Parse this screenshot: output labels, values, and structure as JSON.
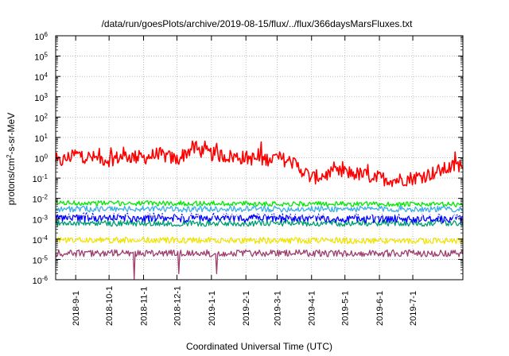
{
  "chart_data": {
    "type": "line",
    "title": "/data/run/goesPlots/archive/2019-08-15/flux/../flux/366daysMarsFluxes.txt",
    "xlabel": "Coordinated Universal Time (UTC)",
    "ylabel": {
      "base": "protons/cm",
      "sup": "2",
      "rest": "-s-sr-MeV"
    },
    "yscale": "log",
    "ylim": [
      1e-06,
      1000000.0
    ],
    "y_ticks": [
      {
        "value": 1e-06,
        "base": "10",
        "exp": "-6"
      },
      {
        "value": 1e-05,
        "base": "10",
        "exp": "-5"
      },
      {
        "value": 0.0001,
        "base": "10",
        "exp": "-4"
      },
      {
        "value": 0.001,
        "base": "10",
        "exp": "-3"
      },
      {
        "value": 0.01,
        "base": "10",
        "exp": "-2"
      },
      {
        "value": 0.1,
        "base": "10",
        "exp": "-1"
      },
      {
        "value": 1.0,
        "base": "10",
        "exp": "0"
      },
      {
        "value": 10.0,
        "base": "10",
        "exp": "1"
      },
      {
        "value": 100.0,
        "base": "10",
        "exp": "2"
      },
      {
        "value": 1000.0,
        "base": "10",
        "exp": "3"
      },
      {
        "value": 10000.0,
        "base": "10",
        "exp": "4"
      },
      {
        "value": 100000.0,
        "base": "10",
        "exp": "5"
      },
      {
        "value": 1000000.0,
        "base": "10",
        "exp": "6"
      }
    ],
    "xlim": [
      "2018-08-14",
      "2019-08-15"
    ],
    "x_ticks": [
      {
        "date": "2018-09-01",
        "label": "2018-9-1"
      },
      {
        "date": "2018-10-01",
        "label": "2018-10-1"
      },
      {
        "date": "2018-11-01",
        "label": "2018-11-1"
      },
      {
        "date": "2018-12-01",
        "label": "2018-12-1"
      },
      {
        "date": "2019-01-01",
        "label": "2019-1-1"
      },
      {
        "date": "2019-02-01",
        "label": "2019-2-1"
      },
      {
        "date": "2019-03-01",
        "label": "2019-3-1"
      },
      {
        "date": "2019-04-01",
        "label": "2019-4-1"
      },
      {
        "date": "2019-05-01",
        "label": "2019-5-1"
      },
      {
        "date": "2019-06-01",
        "label": "2019-6-1"
      },
      {
        "date": "2019-07-01",
        "label": "2019-7-1"
      }
    ],
    "grid": true,
    "grid_style": "dotted",
    "series": [
      {
        "color": "#ff0000",
        "x": [
          "2018-08-14",
          "2018-09-01",
          "2018-09-15",
          "2018-10-01",
          "2018-10-15",
          "2018-11-01",
          "2018-11-15",
          "2018-12-01",
          "2018-12-15",
          "2019-01-01",
          "2019-01-15",
          "2019-02-01",
          "2019-02-15",
          "2019-03-01",
          "2019-03-15",
          "2019-04-01",
          "2019-04-15",
          "2019-05-01",
          "2019-05-15",
          "2019-06-01",
          "2019-06-15",
          "2019-07-01",
          "2019-07-15",
          "2019-08-01",
          "2019-08-15"
        ],
        "y": [
          0.5,
          1.5,
          1.0,
          0.8,
          1.2,
          1.0,
          1.5,
          0.8,
          3.0,
          1.5,
          1.2,
          1.0,
          0.8,
          1.0,
          0.6,
          0.1,
          0.15,
          0.2,
          0.15,
          0.1,
          0.08,
          0.1,
          0.15,
          0.3,
          0.5
        ],
        "noise": 0.35
      },
      {
        "color": "#00e800",
        "x": [
          "2018-08-14",
          "2019-08-15"
        ],
        "y": [
          0.006,
          0.005
        ],
        "noise": 0.12
      },
      {
        "color": "#3aaee6",
        "x": [
          "2018-08-14",
          "2019-08-15"
        ],
        "y": [
          0.003,
          0.003
        ],
        "noise": 0.15
      },
      {
        "color": "#009e73",
        "x": [
          "2018-08-14",
          "2019-08-15"
        ],
        "y": [
          0.0006,
          0.0006
        ],
        "noise": 0.15
      },
      {
        "color": "#0000ff",
        "x": [
          "2018-08-14",
          "2019-08-15"
        ],
        "y": [
          0.0012,
          0.001
        ],
        "noise": 0.22
      },
      {
        "color": "#ffffff",
        "x": [
          "2018-08-14",
          "2019-08-15"
        ],
        "y": [
          0.0017,
          0.0015
        ],
        "noise": 0.08
      },
      {
        "color": "#f0e400",
        "x": [
          "2018-08-14",
          "2019-08-15"
        ],
        "y": [
          9e-05,
          8e-05
        ],
        "noise": 0.15
      },
      {
        "color": "#9e3d6e",
        "x": [
          "2018-08-14",
          "2019-08-15"
        ],
        "y": [
          2e-05,
          2e-05
        ],
        "noise": 0.17,
        "dips": [
          {
            "date": "2018-10-24",
            "value": 1e-06
          },
          {
            "date": "2018-12-03",
            "value": 2e-06
          },
          {
            "date": "2019-01-06",
            "value": 2e-06
          }
        ]
      }
    ]
  }
}
